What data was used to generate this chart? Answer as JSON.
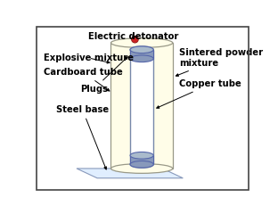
{
  "background_color": "#ffffff",
  "labels": {
    "electric_detonator": "Electric detonator",
    "explosive_mixture": "Explosive mixture",
    "cardboard_tube": "Cardboard tube",
    "plugs": "Plugs",
    "steel_base": "Steel base",
    "sintered_powder": "Sintered powder\nmixture",
    "copper_tube": "Copper tube"
  },
  "colors": {
    "outer_fill": "#fffde8",
    "outer_edge": "#999988",
    "inner_tube_fill": "#f0f0ff",
    "inner_tube_edge": "#7788aa",
    "plug_fill": "#8899bb",
    "plug_edge": "#5566aa",
    "plug_top_fill": "#aabbcc",
    "base_fill": "#e0eeff",
    "base_edge": "#8899bb",
    "detonator_fill": "#cc2222",
    "detonator_edge": "#881111",
    "border_color": "#444444",
    "annotation_color": "#000000"
  },
  "font_size": 7.2,
  "bold": true
}
